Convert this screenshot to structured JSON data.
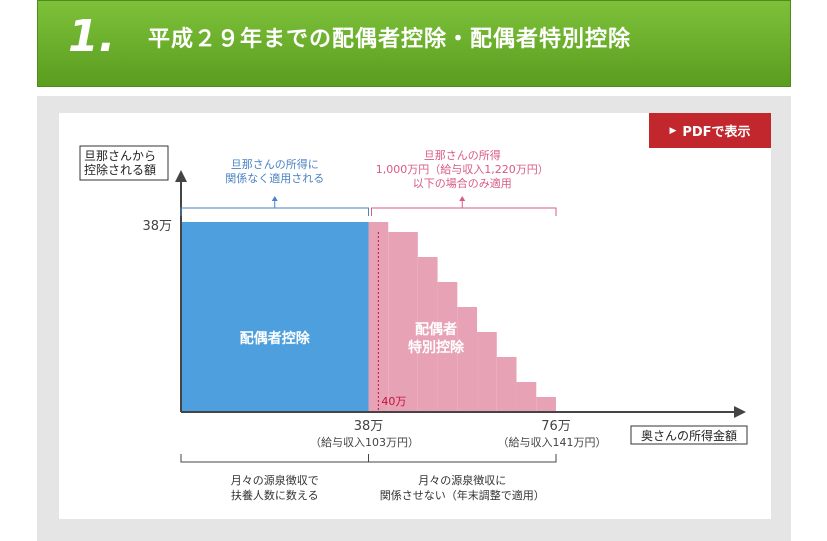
{
  "header": {
    "number": "1.",
    "title": "平成２９年までの配偶者控除・配偶者特別控除"
  },
  "pdf_button": {
    "label": "PDFで表示",
    "icon": "triangle-right-icon"
  },
  "colors": {
    "header_green": "#6aae2b",
    "spousal": "#4d9fdd",
    "special": "#e8a2b6",
    "pdf_red": "#c1272d",
    "blue_text": "#4a83c2",
    "pink_text": "#d95a86"
  },
  "chart_data": {
    "type": "bar",
    "ylabel": [
      "旦那さんから",
      "控除される額"
    ],
    "xlabel": "奥さんの所得金額",
    "y_tick": "38万",
    "x_ticks": [
      {
        "x": 38,
        "label": "38万",
        "sub": "（給与収入103万円）"
      },
      {
        "x": 76,
        "label": "76万",
        "sub": "（給与収入141万円）"
      }
    ],
    "xlim": [
      0,
      76
    ],
    "ylim": [
      0,
      38
    ],
    "series": [
      {
        "name": "配偶者控除",
        "label_lines": [
          "配偶者控除"
        ],
        "color": "#4d9fdd",
        "segments": [
          {
            "x0": 0,
            "x1": 38,
            "value": 38
          }
        ]
      },
      {
        "name": "配偶者特別控除",
        "label_lines": [
          "配偶者",
          "特別控除"
        ],
        "color": "#e8a2b6",
        "segments": [
          {
            "x0": 38,
            "x1": 42,
            "value": 38
          },
          {
            "x0": 42,
            "x1": 48,
            "value": 36
          },
          {
            "x0": 48,
            "x1": 52,
            "value": 31
          },
          {
            "x0": 52,
            "x1": 56,
            "value": 26
          },
          {
            "x0": 56,
            "x1": 60,
            "value": 21
          },
          {
            "x0": 60,
            "x1": 64,
            "value": 16
          },
          {
            "x0": 64,
            "x1": 68,
            "value": 11
          },
          {
            "x0": 68,
            "x1": 72,
            "value": 6
          },
          {
            "x0": 72,
            "x1": 76,
            "value": 3
          }
        ]
      }
    ],
    "marker": {
      "x": 40,
      "label": "40万"
    },
    "top_annotations": [
      {
        "x0": 0,
        "x1": 38,
        "lines": [
          "旦那さんの所得に",
          "関係なく適用される"
        ],
        "color": "#4a83c2"
      },
      {
        "x0": 38,
        "x1": 76,
        "lines": [
          "旦那さんの所得",
          "1,000万円（給与収入1,220万円）",
          "以下の場合のみ適用"
        ],
        "color": "#d95a86"
      }
    ],
    "bottom_annotations": [
      {
        "x0": 0,
        "x1": 38,
        "lines": [
          "月々の源泉徴収で",
          "扶養人数に数える"
        ]
      },
      {
        "x0": 38,
        "x1": 76,
        "lines": [
          "月々の源泉徴収に",
          "関係させない（年末調整で適用）"
        ]
      }
    ]
  }
}
